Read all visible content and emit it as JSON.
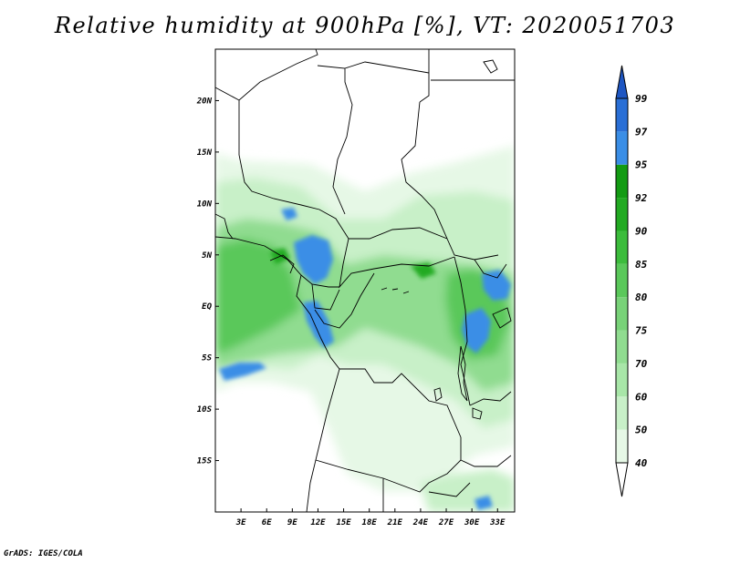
{
  "title": "Relative humidity at 900hPa [%], VT: 2020051703",
  "footer": "GrADS: IGES/COLA",
  "chart_data": {
    "type": "heatmap",
    "variable": "Relative humidity at 900hPa",
    "units": "%",
    "valid_time": "2020051703",
    "xlim": [
      0,
      35
    ],
    "ylim": [
      -20,
      25
    ],
    "x_ticks": [
      {
        "value": 3,
        "label": "3E"
      },
      {
        "value": 6,
        "label": "6E"
      },
      {
        "value": 9,
        "label": "9E"
      },
      {
        "value": 12,
        "label": "12E"
      },
      {
        "value": 15,
        "label": "15E"
      },
      {
        "value": 18,
        "label": "18E"
      },
      {
        "value": 21,
        "label": "21E"
      },
      {
        "value": 24,
        "label": "24E"
      },
      {
        "value": 27,
        "label": "27E"
      },
      {
        "value": 30,
        "label": "30E"
      },
      {
        "value": 33,
        "label": "33E"
      }
    ],
    "y_ticks": [
      {
        "value": 20,
        "label": "20N"
      },
      {
        "value": 15,
        "label": "15N"
      },
      {
        "value": 10,
        "label": "10N"
      },
      {
        "value": 5,
        "label": "5N"
      },
      {
        "value": 0,
        "label": "EQ"
      },
      {
        "value": -5,
        "label": "5S"
      },
      {
        "value": -10,
        "label": "10S"
      },
      {
        "value": -15,
        "label": "15S"
      }
    ],
    "colorbar": {
      "levels": [
        40,
        50,
        60,
        70,
        75,
        80,
        85,
        90,
        92,
        95,
        97,
        99
      ],
      "colors": [
        "#ffffff",
        "#e6f8e6",
        "#c8f0c8",
        "#a8e6a8",
        "#90dc90",
        "#78d278",
        "#5ac85a",
        "#3cbc3c",
        "#22aa22",
        "#139b13",
        "#3a8ee6",
        "#2a6fd6",
        "#1e56c2"
      ]
    }
  }
}
